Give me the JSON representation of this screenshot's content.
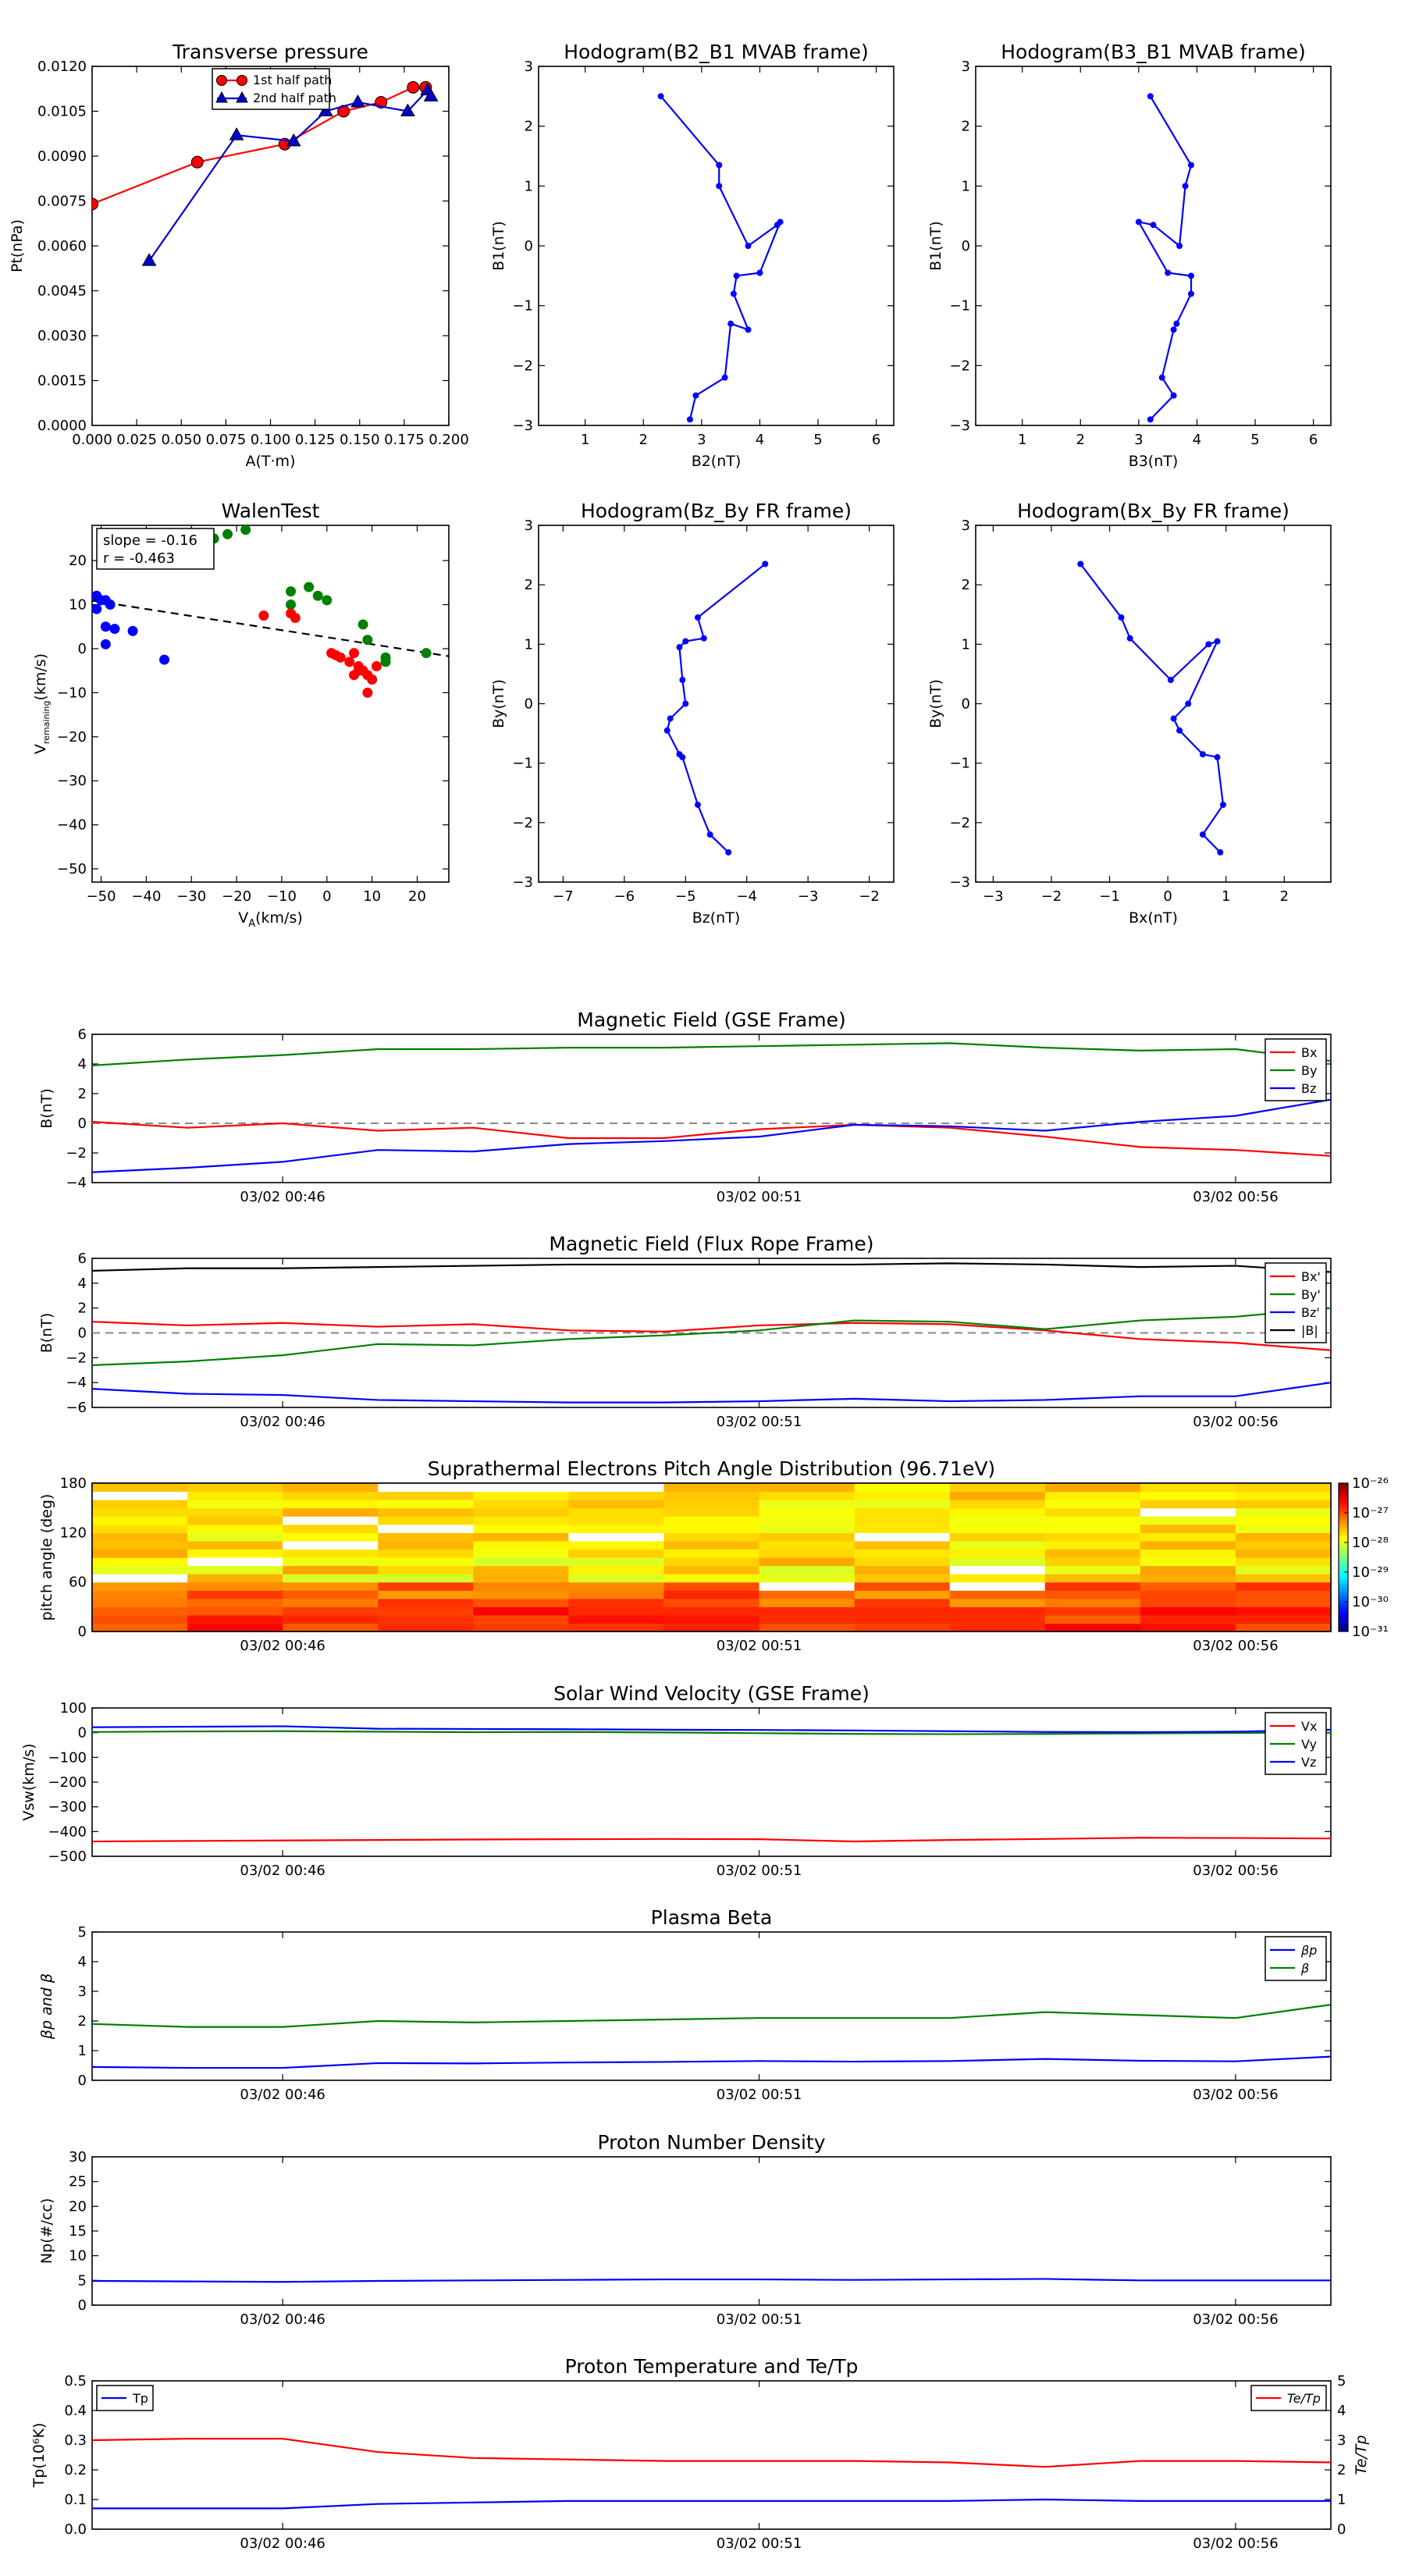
{
  "chart_data": [
    {
      "id": "transverse_pressure",
      "type": "line",
      "title": "Transverse pressure",
      "xlabel": "A(T·m)",
      "ylabel": "Pt(nPa)",
      "xlim": [
        0,
        0.2
      ],
      "ylim": [
        0,
        0.012
      ],
      "xticks": [
        "0.000",
        "0.025",
        "0.050",
        "0.075",
        "0.100",
        "0.125",
        "0.150",
        "0.175",
        "0.200"
      ],
      "yticks": [
        "0.0000",
        "0.0015",
        "0.0030",
        "0.0045",
        "0.0060",
        "0.0075",
        "0.0090",
        "0.0105",
        "0.0120"
      ],
      "legend_position": "top-right",
      "series": [
        {
          "name": "1st half path",
          "color": "#ff0000",
          "marker": "circle",
          "x": [
            0.0,
            0.059,
            0.108,
            0.141,
            0.162,
            0.18,
            0.187
          ],
          "y": [
            0.0074,
            0.0088,
            0.0094,
            0.0105,
            0.0108,
            0.0113,
            0.0113
          ]
        },
        {
          "name": "2nd half path",
          "color": "#0000cc",
          "marker": "triangle",
          "x": [
            0.032,
            0.081,
            0.113,
            0.131,
            0.149,
            0.177,
            0.188,
            0.19
          ],
          "y": [
            0.0055,
            0.0097,
            0.0095,
            0.0105,
            0.0108,
            0.0105,
            0.0112,
            0.011
          ]
        }
      ]
    },
    {
      "id": "hodo_b2b1",
      "type": "line",
      "title": "Hodogram(B2_B1 MVAB frame)",
      "xlabel": "B2(nT)",
      "ylabel": "B1(nT)",
      "xlim": [
        0.2,
        6.3
      ],
      "ylim": [
        -3,
        3
      ],
      "xticks": [
        "1",
        "2",
        "3",
        "4",
        "5",
        "6"
      ],
      "yticks": [
        "−3",
        "−2",
        "−1",
        "0",
        "1",
        "2",
        "3"
      ],
      "series": [
        {
          "color": "#0000ff",
          "marker": "dot",
          "x": [
            2.3,
            3.3,
            3.3,
            3.8,
            4.3,
            4.35,
            4.0,
            3.6,
            3.55,
            3.8,
            3.5,
            3.4,
            2.9,
            2.8
          ],
          "y": [
            2.5,
            1.35,
            1.0,
            0.0,
            0.35,
            0.4,
            -0.45,
            -0.5,
            -0.8,
            -1.4,
            -1.3,
            -2.2,
            -2.5,
            -2.9
          ]
        }
      ]
    },
    {
      "id": "hodo_b3b1",
      "type": "line",
      "title": "Hodogram(B3_B1 MVAB frame)",
      "xlabel": "B3(nT)",
      "ylabel": "B1(nT)",
      "xlim": [
        0.2,
        6.3
      ],
      "ylim": [
        -3,
        3
      ],
      "xticks": [
        "1",
        "2",
        "3",
        "4",
        "5",
        "6"
      ],
      "yticks": [
        "−3",
        "−2",
        "−1",
        "0",
        "1",
        "2",
        "3"
      ],
      "series": [
        {
          "color": "#0000ff",
          "marker": "dot",
          "x": [
            3.2,
            3.9,
            3.8,
            3.7,
            3.25,
            3.0,
            3.5,
            3.9,
            3.9,
            3.65,
            3.6,
            3.4,
            3.6,
            3.2
          ],
          "y": [
            2.5,
            1.35,
            1.0,
            0.0,
            0.35,
            0.4,
            -0.45,
            -0.5,
            -0.8,
            -1.3,
            -1.4,
            -2.2,
            -2.5,
            -2.9
          ]
        }
      ]
    },
    {
      "id": "walen",
      "type": "scatter",
      "title": "WalenTest",
      "xlabel": "V_A(km/s)",
      "ylabel": "V_remaining(km/s)",
      "xlim": [
        -52,
        27
      ],
      "ylim": [
        -53,
        28
      ],
      "xticks": [
        "−50",
        "−40",
        "−30",
        "−20",
        "−10",
        "0",
        "10",
        "20"
      ],
      "yticks": [
        "−50",
        "−40",
        "−30",
        "−20",
        "−10",
        "0",
        "10",
        "20"
      ],
      "annotation": [
        "slope = -0.16",
        "r = -0.463"
      ],
      "fit": {
        "slope": -0.16,
        "intercept": 2.6,
        "style": "dashed",
        "color": "#000000"
      },
      "series": [
        {
          "color": "#0000ff",
          "x": [
            -51,
            -50,
            -49,
            -48,
            -51,
            -49,
            -47,
            -43,
            -36,
            -49
          ],
          "y": [
            12,
            11,
            11,
            10,
            9,
            5,
            4.5,
            4,
            -2.5,
            1
          ]
        },
        {
          "color": "#008000",
          "x": [
            -25,
            -22,
            -18,
            -8,
            -8,
            -4,
            -2,
            0,
            8,
            9,
            13,
            22,
            13
          ],
          "y": [
            25,
            26,
            27,
            13,
            10,
            14,
            12,
            11,
            5.5,
            2,
            -2,
            -1,
            -3
          ]
        },
        {
          "color": "#ff0000",
          "x": [
            -14,
            -8,
            -7,
            1,
            2,
            3,
            5,
            6,
            7,
            8,
            9,
            10,
            11,
            9,
            6,
            7
          ],
          "y": [
            7.5,
            8,
            7,
            -1,
            -1.5,
            -2,
            -3,
            -1,
            -4,
            -5,
            -6,
            -7,
            -4,
            -10,
            -6,
            -5
          ]
        }
      ]
    },
    {
      "id": "hodo_bzby",
      "type": "line",
      "title": "Hodogram(Bz_By FR frame)",
      "xlabel": "Bz(nT)",
      "ylabel": "By(nT)",
      "xlim": [
        -7.4,
        -1.6
      ],
      "ylim": [
        -3,
        3
      ],
      "xticks": [
        "−7",
        "−6",
        "−5",
        "−4",
        "−3",
        "−2"
      ],
      "yticks": [
        "−3",
        "−2",
        "−1",
        "0",
        "1",
        "2",
        "3"
      ],
      "series": [
        {
          "color": "#0000ff",
          "marker": "dot",
          "x": [
            -3.7,
            -4.8,
            -4.7,
            -5.0,
            -5.1,
            -5.05,
            -5.0,
            -5.25,
            -5.3,
            -5.1,
            -5.05,
            -4.8,
            -4.6,
            -4.3
          ],
          "y": [
            2.35,
            1.45,
            1.1,
            1.05,
            0.95,
            0.4,
            0.0,
            -0.25,
            -0.45,
            -0.85,
            -0.9,
            -1.7,
            -2.2,
            -2.5
          ]
        }
      ]
    },
    {
      "id": "hodo_bxby",
      "type": "line",
      "title": "Hodogram(Bx_By FR frame)",
      "xlabel": "Bx(nT)",
      "ylabel": "By(nT)",
      "xlim": [
        -3.3,
        2.8
      ],
      "ylim": [
        -3,
        3
      ],
      "xticks": [
        "−3",
        "−2",
        "−1",
        "0",
        "1",
        "2"
      ],
      "yticks": [
        "−3",
        "−2",
        "−1",
        "0",
        "1",
        "2",
        "3"
      ],
      "series": [
        {
          "color": "#0000ff",
          "marker": "dot",
          "x": [
            -1.5,
            -0.8,
            -0.65,
            0.05,
            0.7,
            0.85,
            0.35,
            0.1,
            0.2,
            0.6,
            0.85,
            0.95,
            0.6,
            0.9
          ],
          "y": [
            2.35,
            1.45,
            1.1,
            0.4,
            1.0,
            1.05,
            0.0,
            -0.25,
            -0.45,
            -0.85,
            -0.9,
            -1.7,
            -2.2,
            -2.5
          ]
        }
      ]
    },
    {
      "id": "mag_gse",
      "type": "line",
      "title": "Magnetic Field (GSE Frame)",
      "ylabel": "B(nT)",
      "ylim": [
        -4,
        6
      ],
      "yticks": [
        "−4",
        "−2",
        "0",
        "2",
        "4",
        "6"
      ],
      "xticks": [
        "03/02 00:46",
        "03/02 00:51",
        "03/02 00:56"
      ],
      "xtick_pos": [
        2,
        7,
        12
      ],
      "zero_line": true,
      "legend_position": "top-right",
      "series": [
        {
          "name": "Bx",
          "color": "#ff0000",
          "values": [
            0.1,
            -0.3,
            0.0,
            -0.5,
            -0.3,
            -1.0,
            -1.0,
            -0.4,
            -0.1,
            -0.3,
            -0.9,
            -1.6,
            -1.8,
            -2.2
          ]
        },
        {
          "name": "By",
          "color": "#008000",
          "values": [
            3.9,
            4.3,
            4.6,
            5.0,
            5.0,
            5.1,
            5.1,
            5.2,
            5.3,
            5.4,
            5.1,
            4.9,
            5.0,
            4.2
          ]
        },
        {
          "name": "Bz",
          "color": "#0000ff",
          "values": [
            -3.3,
            -3.0,
            -2.6,
            -1.8,
            -1.9,
            -1.4,
            -1.2,
            -0.9,
            -0.1,
            -0.2,
            -0.5,
            0.1,
            0.5,
            1.6
          ]
        }
      ]
    },
    {
      "id": "mag_fr",
      "type": "line",
      "title": "Magnetic Field (Flux Rope Frame)",
      "ylabel": "B(nT)",
      "ylim": [
        -6,
        6
      ],
      "yticks": [
        "−6",
        "−4",
        "−2",
        "0",
        "2",
        "4",
        "6"
      ],
      "xticks": [
        "03/02 00:46",
        "03/02 00:51",
        "03/02 00:56"
      ],
      "xtick_pos": [
        2,
        7,
        12
      ],
      "zero_line": true,
      "legend_position": "top-right",
      "series": [
        {
          "name": "Bx'",
          "color": "#ff0000",
          "values": [
            0.9,
            0.6,
            0.8,
            0.5,
            0.7,
            0.2,
            0.1,
            0.6,
            0.8,
            0.7,
            0.2,
            -0.5,
            -0.8,
            -1.4
          ]
        },
        {
          "name": "By'",
          "color": "#008000",
          "values": [
            -2.6,
            -2.3,
            -1.8,
            -0.9,
            -1.0,
            -0.5,
            -0.2,
            0.2,
            1.0,
            0.9,
            0.3,
            1.0,
            1.3,
            2.0
          ]
        },
        {
          "name": "Bz'",
          "color": "#0000ff",
          "values": [
            -4.5,
            -4.9,
            -5.0,
            -5.4,
            -5.5,
            -5.6,
            -5.6,
            -5.5,
            -5.3,
            -5.5,
            -5.4,
            -5.1,
            -5.1,
            -4.0
          ]
        },
        {
          "name": "|B|",
          "color": "#000000",
          "values": [
            5.0,
            5.2,
            5.2,
            5.3,
            5.4,
            5.5,
            5.5,
            5.5,
            5.5,
            5.6,
            5.5,
            5.3,
            5.4,
            4.9
          ]
        }
      ]
    },
    {
      "id": "pad",
      "type": "heatmap",
      "title": "Suprathermal Electrons Pitch Angle Distribution (96.71eV)",
      "ylabel": "pitch angle (deg)",
      "ylim": [
        0,
        180
      ],
      "yticks": [
        "0",
        "60",
        "120",
        "180"
      ],
      "xticks": [
        "03/02 00:46",
        "03/02 00:51",
        "03/02 00:56"
      ],
      "xtick_pos": [
        2,
        7,
        12
      ],
      "colorbar_ticks": [
        "10⁻³¹",
        "10⁻³⁰",
        "10⁻²⁹",
        "10⁻²⁸",
        "10⁻²⁷",
        "10⁻²⁶"
      ],
      "colorbar_range": [
        -31,
        -26
      ],
      "bins": 18,
      "columns": 13
    },
    {
      "id": "vsw",
      "type": "line",
      "title": "Solar Wind Velocity (GSE Frame)",
      "ylabel": "Vsw(km/s)",
      "ylim": [
        -500,
        100
      ],
      "yticks": [
        "−500",
        "−400",
        "−300",
        "−200",
        "−100",
        "0",
        "100"
      ],
      "xticks": [
        "03/02 00:46",
        "03/02 00:51",
        "03/02 00:56"
      ],
      "xtick_pos": [
        2,
        7,
        12
      ],
      "legend_position": "top-right",
      "series": [
        {
          "name": "Vx",
          "color": "#ff0000",
          "values": [
            -440,
            -438,
            -436,
            -434,
            -432,
            -431,
            -430,
            -431,
            -440,
            -434,
            -430,
            -425,
            -426,
            -428
          ]
        },
        {
          "name": "Vy",
          "color": "#008000",
          "values": [
            3,
            5,
            6,
            4,
            2,
            3,
            1,
            -2,
            -5,
            -6,
            -5,
            -3,
            -1,
            0
          ]
        },
        {
          "name": "Vz",
          "color": "#0000ff",
          "values": [
            22,
            24,
            26,
            16,
            15,
            14,
            12,
            11,
            9,
            6,
            3,
            2,
            4,
            12
          ]
        }
      ]
    },
    {
      "id": "beta",
      "type": "line",
      "title": "Plasma Beta",
      "ylabel": "βp and β",
      "ylim": [
        0,
        5
      ],
      "yticks": [
        "0",
        "1",
        "2",
        "3",
        "4",
        "5"
      ],
      "xticks": [
        "03/02 00:46",
        "03/02 00:51",
        "03/02 00:56"
      ],
      "xtick_pos": [
        2,
        7,
        12
      ],
      "legend_position": "top-right",
      "series": [
        {
          "name": "βp",
          "color": "#0000ff",
          "values": [
            0.45,
            0.42,
            0.42,
            0.58,
            0.57,
            0.6,
            0.62,
            0.65,
            0.63,
            0.65,
            0.72,
            0.66,
            0.64,
            0.8
          ]
        },
        {
          "name": "β",
          "color": "#008000",
          "values": [
            1.9,
            1.8,
            1.8,
            2.0,
            1.95,
            2.0,
            2.05,
            2.1,
            2.1,
            2.1,
            2.3,
            2.2,
            2.1,
            2.55
          ]
        }
      ]
    },
    {
      "id": "np",
      "type": "line",
      "title": "Proton Number Density",
      "ylabel": "Np(#/cc)",
      "ylim": [
        0,
        30
      ],
      "yticks": [
        "0",
        "5",
        "10",
        "15",
        "20",
        "25",
        "30"
      ],
      "xticks": [
        "03/02 00:46",
        "03/02 00:51",
        "03/02 00:56"
      ],
      "xtick_pos": [
        2,
        7,
        12
      ],
      "series": [
        {
          "color": "#0000ff",
          "values": [
            4.9,
            4.8,
            4.7,
            4.9,
            5.0,
            5.1,
            5.2,
            5.2,
            5.1,
            5.2,
            5.3,
            5.0,
            5.0,
            5.0
          ]
        }
      ]
    },
    {
      "id": "tp",
      "type": "line",
      "title": "Proton Temperature and Te/Tp",
      "ylabel": "Tp(10⁶K)",
      "ylabel_right": "Te/Tp",
      "ylim": [
        0,
        0.5
      ],
      "yticks": [
        "0.0",
        "0.1",
        "0.2",
        "0.3",
        "0.4",
        "0.5"
      ],
      "ylim_right": [
        0,
        5
      ],
      "yticks_right": [
        "0",
        "1",
        "2",
        "3",
        "4",
        "5"
      ],
      "xticks": [
        "03/02 00:46",
        "03/02 00:51",
        "03/02 00:56"
      ],
      "xtick_pos": [
        2,
        7,
        12
      ],
      "series": [
        {
          "name": "Tp",
          "color": "#0000ff",
          "axis": "left",
          "legend": "top-left",
          "values": [
            0.07,
            0.07,
            0.07,
            0.085,
            0.09,
            0.095,
            0.095,
            0.095,
            0.095,
            0.095,
            0.1,
            0.095,
            0.095,
            0.095
          ]
        },
        {
          "name": "Te/Tp",
          "color": "#ff0000",
          "axis": "right",
          "legend": "top-right",
          "values": [
            3.0,
            3.05,
            3.05,
            2.6,
            2.4,
            2.35,
            2.3,
            2.3,
            2.3,
            2.25,
            2.1,
            2.3,
            2.3,
            2.25
          ]
        }
      ]
    }
  ]
}
